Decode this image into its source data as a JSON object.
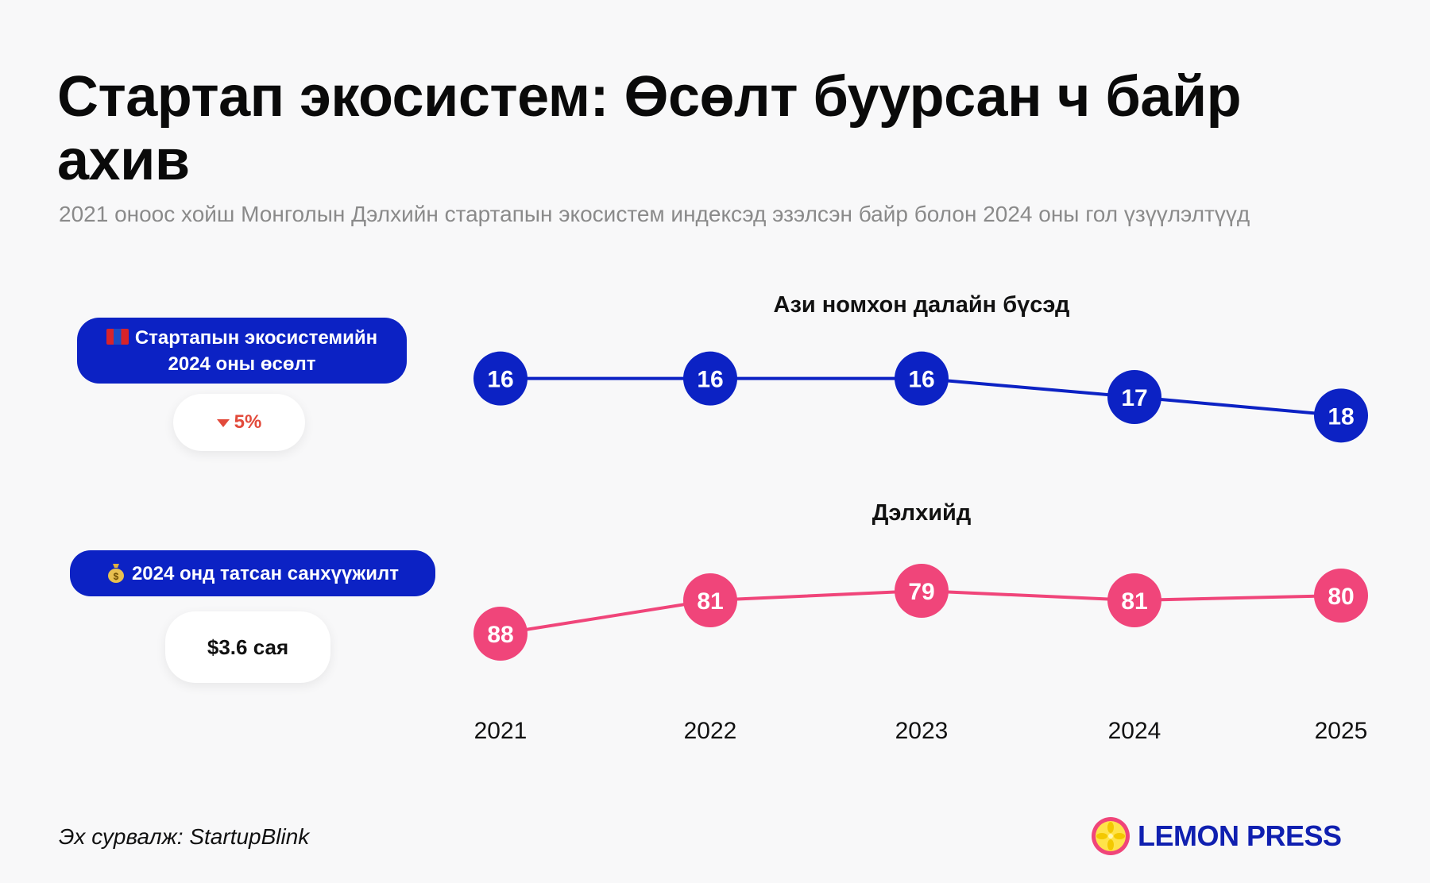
{
  "title": "Стартап экосистем: Өсөлт буурсан ч байр ахив",
  "subtitle": "2021 оноос хойш Монголын Дэлхийн стартапын экосистем индексэд эзэлсэн байр болон 2024 оны гол үзүүлэлтүүд",
  "indicators": {
    "growth": {
      "icon": "mongolia-flag-icon",
      "label": "Стартапын экосистемийн 2024 оны өсөлт",
      "value": "5%",
      "direction": "down",
      "direction_color": "#e24a3b"
    },
    "funding": {
      "icon": "money-bag-icon",
      "label": "2024 онд татсан санхүүжилт",
      "value": "$3.6 сая"
    }
  },
  "chart_data": {
    "type": "line",
    "categories": [
      "2021",
      "2022",
      "2023",
      "2024",
      "2025"
    ],
    "series": [
      {
        "name": "Ази номхон далайн бүсэд",
        "values": [
          16,
          16,
          16,
          17,
          18
        ],
        "color": "#0c22c4",
        "y_scale": [
          14,
          20
        ]
      },
      {
        "name": "Дэлхийд",
        "values": [
          88,
          81,
          79,
          81,
          80
        ],
        "color": "#f0457a",
        "y_scale": [
          70,
          95
        ]
      }
    ],
    "y_axis_inverted": true,
    "grid": false,
    "data_labels": true
  },
  "source": "Эх сурвалж: StartupBlink",
  "brand": {
    "name": "LEMON PRESS",
    "icon": "lemon-icon",
    "color": "#1020b0"
  }
}
